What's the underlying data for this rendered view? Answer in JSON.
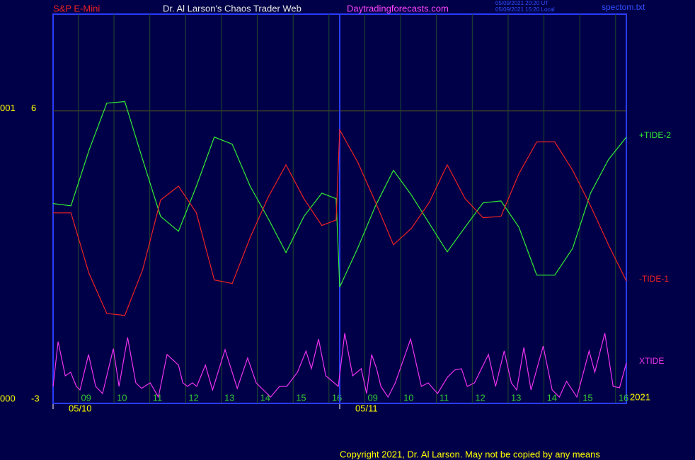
{
  "chart_data": {
    "type": "line",
    "header": {
      "symbol": "S&P E-Mini",
      "title": "Dr. Al Larson's Chaos Trader Web",
      "site": "Daytradingforecasts.com",
      "stamp_ut": "05/09/2021 20:20 UT",
      "stamp_local": "05/09/2021 15:20 Local",
      "file": "spectom.txt"
    },
    "footer": "Copyright 2021, Dr. Al Larson. May not be copied by any means",
    "left_labels": [
      "001",
      "000"
    ],
    "year_label": "2021",
    "xlim": [
      0,
      16
    ],
    "ylim": [
      -3,
      9
    ],
    "yticks": [
      6,
      -3
    ],
    "xticks": [
      {
        "value": 0.7,
        "label": "09"
      },
      {
        "value": 1.7,
        "label": "10"
      },
      {
        "value": 2.7,
        "label": "11"
      },
      {
        "value": 3.7,
        "label": "12"
      },
      {
        "value": 4.7,
        "label": "13"
      },
      {
        "value": 5.7,
        "label": "14"
      },
      {
        "value": 6.7,
        "label": "15"
      },
      {
        "value": 7.7,
        "label": "16"
      },
      {
        "value": 8.7,
        "label": "09"
      },
      {
        "value": 9.7,
        "label": "10"
      },
      {
        "value": 10.7,
        "label": "11"
      },
      {
        "value": 11.7,
        "label": "12"
      },
      {
        "value": 12.7,
        "label": "13"
      },
      {
        "value": 13.7,
        "label": "14"
      },
      {
        "value": 14.7,
        "label": "15"
      },
      {
        "value": 15.7,
        "label": "16"
      }
    ],
    "date_ticks": [
      {
        "value": 0,
        "label": "05/10"
      },
      {
        "value": 8,
        "label": "05/11"
      }
    ],
    "x": [
      0,
      0.5,
      1,
      1.5,
      2,
      2.5,
      3,
      3.5,
      4,
      4.5,
      5,
      5.5,
      6,
      6.5,
      7,
      7.5,
      7.9,
      8,
      8.5,
      9,
      9.5,
      10,
      10.5,
      11,
      11.5,
      12,
      12.5,
      13,
      13.5,
      14,
      14.5,
      15,
      15.5,
      16
    ],
    "series": [
      {
        "name": "+TIDE-2",
        "color": "#33ee33",
        "values": [
          3.13,
          3.06,
          4.77,
          6.24,
          6.29,
          4.49,
          2.73,
          2.27,
          3.67,
          5.19,
          4.97,
          3.67,
          2.67,
          1.61,
          2.73,
          3.45,
          3.28,
          0.54,
          1.74,
          3.06,
          4.16,
          3.39,
          2.51,
          1.63,
          2.4,
          3.15,
          3.21,
          2.4,
          0.91,
          0.91,
          1.74,
          3.45,
          4.49,
          5.19
        ]
      },
      {
        "name": "-TIDE-1",
        "color": "#ee2222",
        "values": [
          2.84,
          2.84,
          0.97,
          -0.28,
          -0.34,
          1.08,
          3.24,
          3.67,
          2.84,
          0.76,
          0.65,
          2.07,
          3.32,
          4.33,
          3.28,
          2.45,
          2.62,
          5.41,
          4.42,
          3.17,
          1.85,
          2.36,
          3.17,
          4.33,
          3.28,
          2.69,
          2.73,
          4.05,
          5.04,
          5.04,
          4.16,
          3.06,
          1.85,
          0.73
        ]
      },
      {
        "name": "XTIDE",
        "color": "#ee33ee",
        "x": [
          0,
          0.14,
          0.34,
          0.49,
          0.65,
          0.75,
          0.99,
          1.19,
          1.38,
          1.68,
          1.84,
          2.08,
          2.31,
          2.47,
          2.71,
          2.94,
          3.18,
          3.5,
          3.62,
          3.75,
          3.89,
          4.01,
          4.25,
          4.45,
          4.8,
          5.14,
          5.43,
          5.67,
          5.87,
          6.07,
          6.32,
          6.52,
          6.82,
          7.06,
          7.21,
          7.41,
          7.61,
          7.73,
          7.96,
          8.14,
          8.36,
          8.6,
          8.75,
          8.89,
          9.03,
          9.15,
          9.35,
          9.55,
          9.98,
          10.28,
          10.47,
          10.73,
          11.01,
          11.21,
          11.4,
          11.56,
          11.76,
          12.15,
          12.35,
          12.59,
          12.79,
          12.94,
          13.14,
          13.34,
          13.68,
          13.93,
          14.13,
          14.33,
          14.62,
          14.96,
          15.12,
          15.4,
          15.63,
          15.81,
          16
        ],
        "values": [
          -2.54,
          -1.15,
          -2.21,
          -2.1,
          -2.54,
          -2.65,
          -1.55,
          -2.54,
          -2.76,
          -1.37,
          -2.54,
          -1.02,
          -2.43,
          -2.6,
          -2.43,
          -2.87,
          -1.55,
          -1.88,
          -2.43,
          -2.54,
          -2.43,
          -2.54,
          -1.88,
          -2.65,
          -1.4,
          -2.6,
          -1.66,
          -2.43,
          -2.65,
          -2.87,
          -2.54,
          -2.54,
          -2.1,
          -1.44,
          -1.99,
          -1.07,
          -2.21,
          -2.32,
          -2.54,
          -0.89,
          -2.21,
          -1.99,
          -2.76,
          -1.55,
          -1.99,
          -2.54,
          -2.87,
          -2.43,
          -1.07,
          -2.54,
          -2.43,
          -2.76,
          -2.25,
          -2.03,
          -1.99,
          -2.54,
          -2.43,
          -1.55,
          -2.54,
          -1.44,
          -2.43,
          -2.65,
          -1.33,
          -2.65,
          -1.29,
          -2.65,
          -2.87,
          -2.38,
          -2.87,
          -1.44,
          -2.1,
          -0.89,
          -2.54,
          -2.58,
          -1.81
        ]
      }
    ],
    "grid": true
  }
}
